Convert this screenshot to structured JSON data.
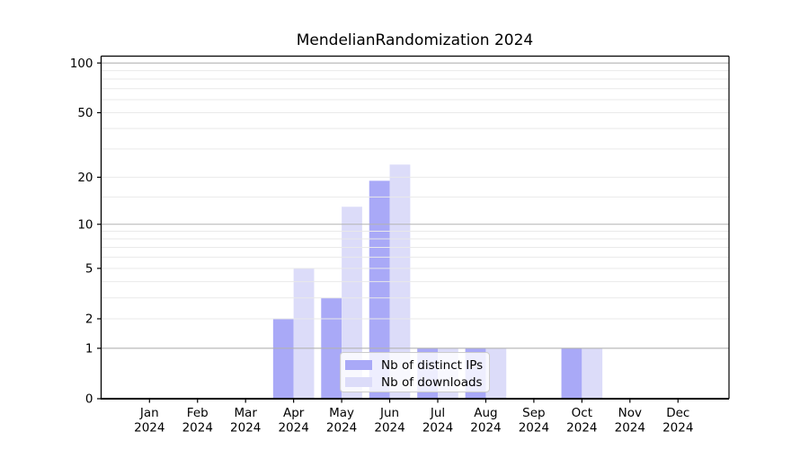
{
  "chart_data": {
    "type": "bar",
    "title": "MendelianRandomization 2024",
    "categories": [
      "Jan 2024",
      "Feb 2024",
      "Mar 2024",
      "Apr 2024",
      "May 2024",
      "Jun 2024",
      "Jul 2024",
      "Aug 2024",
      "Sep 2024",
      "Oct 2024",
      "Nov 2024",
      "Dec 2024"
    ],
    "series": [
      {
        "name": "Nb of distinct IPs",
        "color": "#a9a9f7",
        "values": [
          0,
          0,
          0,
          2,
          3,
          19,
          1,
          1,
          0,
          1,
          0,
          0
        ]
      },
      {
        "name": "Nb of downloads",
        "color": "#dcdcf9",
        "values": [
          0,
          0,
          0,
          5,
          13,
          24,
          1,
          1,
          0,
          1,
          0,
          0
        ]
      }
    ],
    "xlabel": "",
    "ylabel": "",
    "yscale": "log1p",
    "ylim": [
      0,
      110
    ],
    "yticks": [
      0,
      1,
      2,
      5,
      10,
      20,
      50,
      100
    ],
    "major_gridlines": [
      1,
      10,
      100
    ],
    "minor_gridlines": [
      2,
      3,
      4,
      5,
      6,
      7,
      8,
      9,
      15,
      20,
      30,
      40,
      50,
      60,
      70,
      80,
      90
    ],
    "grid": true,
    "legend_position": "lower center (inside plot)",
    "colors": {
      "major_grid": "#b3b3b3",
      "minor_grid": "#e9e9e9",
      "axis": "#000000",
      "text": "#000000",
      "background": "#ffffff"
    }
  }
}
